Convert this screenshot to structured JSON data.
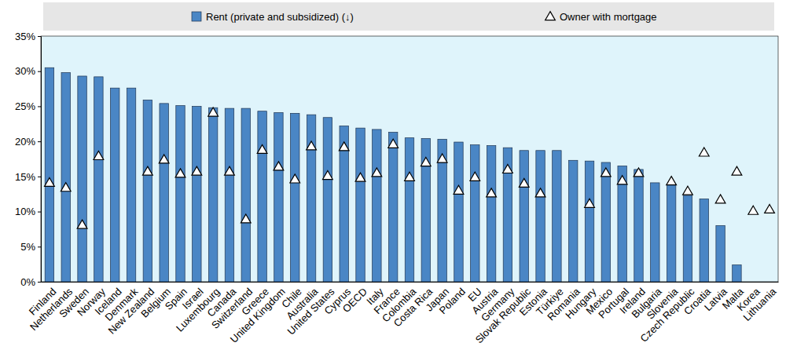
{
  "chart_data": {
    "type": "bar",
    "categories": [
      "Finland",
      "Netherlands",
      "Sweden",
      "Norway",
      "Iceland",
      "Denmark",
      "New Zealand",
      "Belgium",
      "Spain",
      "Israel",
      "Luxembourg",
      "Canada",
      "Switzerland",
      "Greece",
      "United Kingdom",
      "Chile",
      "Australia",
      "United States",
      "Cyprus",
      "OECD",
      "Italy",
      "France",
      "Colombia",
      "Costa Rica",
      "Japan",
      "Poland",
      "EU",
      "Austria",
      "Germany",
      "Slovak Republic",
      "Estonia",
      "Türkiye",
      "Romania",
      "Hungary",
      "Mexico",
      "Portugal",
      "Ireland",
      "Bulgaria",
      "Slovenia",
      "Czech Republic",
      "Croatia",
      "Latvia",
      "Malta",
      "Korea",
      "Lithuania"
    ],
    "series": [
      {
        "name": "Rent (private and subsidized) (↓)",
        "type": "bar",
        "color": "#4a86c5",
        "values": [
          30.5,
          29.8,
          29.3,
          29.2,
          27.6,
          27.6,
          25.9,
          25.4,
          25.1,
          25.0,
          24.8,
          24.7,
          24.7,
          24.3,
          24.1,
          24.0,
          23.8,
          23.4,
          22.2,
          21.9,
          21.7,
          21.3,
          20.5,
          20.4,
          20.3,
          19.9,
          19.5,
          19.4,
          19.1,
          18.7,
          18.7,
          18.7,
          17.3,
          17.2,
          17.0,
          16.5,
          16.0,
          14.1,
          13.9,
          12.3,
          11.8,
          8.0,
          2.4,
          null,
          null
        ]
      },
      {
        "name": "Owner with mortgage",
        "type": "scatter",
        "marker": "triangle",
        "color": "#ffffff",
        "values": [
          14.0,
          13.3,
          8.0,
          17.8,
          null,
          null,
          15.6,
          17.3,
          15.3,
          15.6,
          24.0,
          15.6,
          8.8,
          18.7,
          16.3,
          14.5,
          19.2,
          15.0,
          19.1,
          14.7,
          15.4,
          19.5,
          14.8,
          16.9,
          17.4,
          12.9,
          14.8,
          12.5,
          15.9,
          13.9,
          12.5,
          null,
          null,
          11.0,
          15.4,
          14.3,
          15.4,
          null,
          14.2,
          12.8,
          18.3,
          11.6,
          15.6,
          10.0,
          10.2
        ]
      }
    ],
    "ylim": [
      0,
      35
    ],
    "yticks": [
      {
        "value": 0,
        "label": "0%"
      },
      {
        "value": 5,
        "label": "5%"
      },
      {
        "value": 10,
        "label": "10%"
      },
      {
        "value": 15,
        "label": "15%"
      },
      {
        "value": 20,
        "label": "20%"
      },
      {
        "value": 25,
        "label": "25%"
      },
      {
        "value": 30,
        "label": "30%"
      },
      {
        "value": 35,
        "label": "35%"
      }
    ],
    "grid": false,
    "legend": "top"
  }
}
